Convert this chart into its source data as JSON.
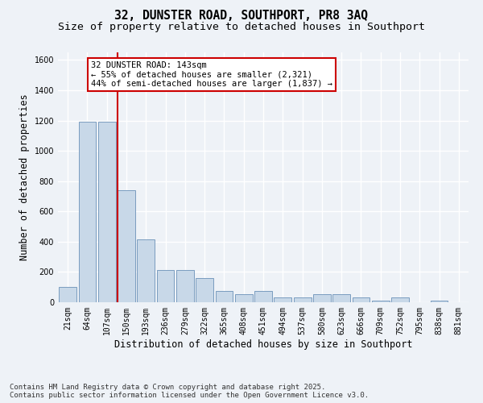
{
  "title_line1": "32, DUNSTER ROAD, SOUTHPORT, PR8 3AQ",
  "title_line2": "Size of property relative to detached houses in Southport",
  "xlabel": "Distribution of detached houses by size in Southport",
  "ylabel": "Number of detached properties",
  "categories": [
    "21sqm",
    "64sqm",
    "107sqm",
    "150sqm",
    "193sqm",
    "236sqm",
    "279sqm",
    "322sqm",
    "365sqm",
    "408sqm",
    "451sqm",
    "494sqm",
    "537sqm",
    "580sqm",
    "623sqm",
    "666sqm",
    "709sqm",
    "752sqm",
    "795sqm",
    "838sqm",
    "881sqm"
  ],
  "values": [
    100,
    1190,
    1190,
    740,
    415,
    215,
    215,
    160,
    75,
    55,
    75,
    30,
    30,
    55,
    55,
    30,
    10,
    30,
    0,
    10,
    0
  ],
  "bar_color": "#c8d8e8",
  "bar_edge_color": "#7a9cbf",
  "annotation_text": "32 DUNSTER ROAD: 143sqm\n← 55% of detached houses are smaller (2,321)\n44% of semi-detached houses are larger (1,837) →",
  "ylim": [
    0,
    1650
  ],
  "yticks": [
    0,
    200,
    400,
    600,
    800,
    1000,
    1200,
    1400,
    1600
  ],
  "footer_line1": "Contains HM Land Registry data © Crown copyright and database right 2025.",
  "footer_line2": "Contains public sector information licensed under the Open Government Licence v3.0.",
  "background_color": "#eef2f7",
  "plot_bg_color": "#eef2f7",
  "grid_color": "#ffffff",
  "title_fontsize": 10.5,
  "subtitle_fontsize": 9.5,
  "axis_label_fontsize": 8.5,
  "tick_fontsize": 7,
  "footer_fontsize": 6.5,
  "annotation_fontsize": 7.5
}
